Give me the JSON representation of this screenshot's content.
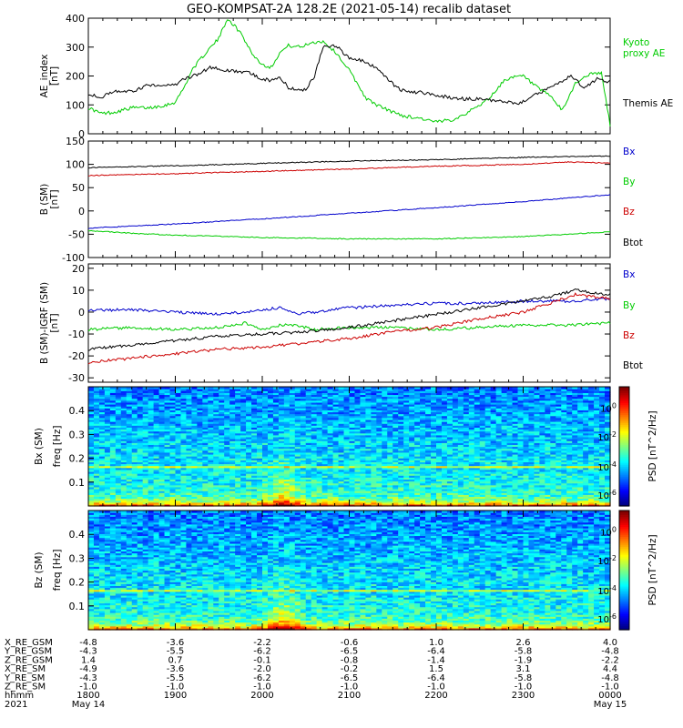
{
  "title": "GEO-KOMPSAT-2A 128.2E (2021-05-14) recalib dataset",
  "x_range_hours": [
    18.0,
    24.0
  ],
  "x_labels": {
    "rows": [
      {
        "name": "X_RE_GSM",
        "values": [
          "-4.8",
          "-3.6",
          "-2.2",
          "-0.6",
          "1.0",
          "2.6",
          "4.0"
        ]
      },
      {
        "name": "Y_RE_GSM",
        "values": [
          "-4.3",
          "-5.5",
          "-6.2",
          "-6.5",
          "-6.4",
          "-5.8",
          "-4.8"
        ]
      },
      {
        "name": "Z_RE_GSM",
        "values": [
          "1.4",
          "0.7",
          "-0.1",
          "-0.8",
          "-1.4",
          "-1.9",
          "-2.2"
        ]
      },
      {
        "name": "X_RE_SM",
        "values": [
          "-4.9",
          "-3.6",
          "-2.0",
          "-0.2",
          "1.5",
          "3.1",
          "4.4"
        ]
      },
      {
        "name": "Y_RE_SM",
        "values": [
          "-4.3",
          "-5.5",
          "-6.2",
          "-6.5",
          "-6.4",
          "-5.8",
          "-4.8"
        ]
      },
      {
        "name": "Z_RE_SM",
        "values": [
          "-1.0",
          "-1.0",
          "-1.0",
          "-1.0",
          "-1.0",
          "-1.0",
          "-1.0"
        ]
      },
      {
        "name": "hhmm",
        "values": [
          "1800",
          "1900",
          "2000",
          "2100",
          "2200",
          "2300",
          "0000"
        ]
      },
      {
        "name": "2021",
        "values": [
          "May 14",
          "",
          "",
          "",
          "",
          "",
          "May 15"
        ]
      }
    ]
  },
  "chart_data": [
    {
      "type": "line",
      "ylabel": "AE_index [nT]",
      "ylim": [
        0,
        400
      ],
      "yticks": [
        0,
        100,
        200,
        300,
        400
      ],
      "series": [
        {
          "name": "Kyoto proxy AE",
          "color": "#00cc00",
          "x": [
            18.0,
            18.15,
            18.3,
            18.5,
            18.7,
            18.9,
            19.0,
            19.1,
            19.2,
            19.35,
            19.5,
            19.6,
            19.75,
            19.9,
            20.0,
            20.1,
            20.2,
            20.3,
            20.45,
            20.55,
            20.7,
            20.85,
            21.0,
            21.1,
            21.2,
            21.35,
            21.5,
            21.65,
            21.8,
            22.0,
            22.2,
            22.4,
            22.6,
            22.8,
            23.0,
            23.1,
            23.2,
            23.3,
            23.45,
            23.6,
            23.75,
            23.9,
            24.0
          ],
          "y": [
            90,
            70,
            75,
            90,
            90,
            100,
            110,
            160,
            225,
            280,
            330,
            400,
            350,
            270,
            240,
            230,
            280,
            305,
            300,
            315,
            320,
            280,
            220,
            170,
            120,
            95,
            75,
            60,
            55,
            40,
            50,
            80,
            120,
            190,
            200,
            175,
            150,
            135,
            80,
            175,
            205,
            210,
            30
          ]
        },
        {
          "name": "Themis AE",
          "color": "#000000",
          "x": [
            18.0,
            18.15,
            18.3,
            18.5,
            18.7,
            18.9,
            19.0,
            19.1,
            19.25,
            19.4,
            19.55,
            19.7,
            19.85,
            20.0,
            20.1,
            20.2,
            20.3,
            20.4,
            20.5,
            20.6,
            20.7,
            20.85,
            21.0,
            21.15,
            21.3,
            21.45,
            21.6,
            21.75,
            21.9,
            22.05,
            22.2,
            22.35,
            22.5,
            22.65,
            22.8,
            22.95,
            23.1,
            23.25,
            23.4,
            23.55,
            23.7,
            23.85,
            24.0
          ],
          "y": [
            140,
            125,
            150,
            145,
            170,
            165,
            170,
            190,
            205,
            230,
            220,
            215,
            210,
            190,
            185,
            195,
            160,
            150,
            155,
            200,
            300,
            305,
            260,
            255,
            230,
            185,
            150,
            145,
            140,
            130,
            125,
            120,
            120,
            115,
            110,
            105,
            130,
            150,
            175,
            200,
            160,
            190,
            180
          ]
        }
      ]
    },
    {
      "type": "line",
      "ylabel": "B (SM) [nT]",
      "ylim": [
        -100,
        150
      ],
      "yticks": [
        -100,
        -50,
        0,
        50,
        100,
        150
      ],
      "series": [
        {
          "name": "Bx",
          "color": "#0000cc",
          "x": [
            18,
            19,
            20,
            21,
            22,
            23,
            24
          ],
          "y": [
            -37,
            -28,
            -17,
            -5,
            7,
            20,
            35
          ]
        },
        {
          "name": "By",
          "color": "#00cc00",
          "x": [
            18,
            18.5,
            19,
            20,
            21,
            22,
            23,
            24
          ],
          "y": [
            -42,
            -48,
            -52,
            -57,
            -60,
            -60,
            -55,
            -45
          ]
        },
        {
          "name": "Bz",
          "color": "#cc0000",
          "x": [
            18,
            19,
            20,
            21,
            22,
            23,
            23.5,
            24
          ],
          "y": [
            76,
            80,
            85,
            90,
            96,
            100,
            105,
            103
          ]
        },
        {
          "name": "Btot",
          "color": "#000000",
          "x": [
            18,
            19,
            20,
            21,
            22,
            23,
            24
          ],
          "y": [
            93,
            97,
            102,
            107,
            110,
            115,
            118
          ]
        }
      ]
    },
    {
      "type": "line",
      "ylabel": "B (SM)-IGRF (SM) [nT]",
      "ylim": [
        -32,
        22
      ],
      "yticks": [
        -30,
        -20,
        -10,
        0,
        10,
        20
      ],
      "series": [
        {
          "name": "Bx",
          "color": "#0000cc",
          "x": [
            18,
            18.5,
            19,
            19.5,
            19.8,
            20.0,
            20.2,
            20.4,
            20.6,
            21,
            21.5,
            22,
            22.5,
            23,
            23.5,
            24
          ],
          "y": [
            1,
            1,
            0,
            -1,
            0,
            1,
            2,
            -1,
            0,
            2,
            3,
            4,
            4,
            5,
            5,
            6
          ]
        },
        {
          "name": "By",
          "color": "#00cc00",
          "x": [
            18,
            18.5,
            19,
            19.5,
            19.8,
            20.0,
            20.2,
            20.4,
            20.6,
            21,
            21.5,
            22,
            22.5,
            23,
            23.5,
            24
          ],
          "y": [
            -8,
            -7,
            -8,
            -7,
            -5,
            -8,
            -6,
            -6,
            -8,
            -7,
            -7,
            -8,
            -7,
            -6,
            -6,
            -5
          ]
        },
        {
          "name": "Bz",
          "color": "#cc0000",
          "x": [
            18,
            18.5,
            19,
            19.5,
            20,
            20.5,
            21,
            21.5,
            22,
            22.5,
            23,
            23.3,
            23.6,
            24
          ],
          "y": [
            -23,
            -21,
            -19,
            -17,
            -16,
            -14,
            -12,
            -9,
            -7,
            -3,
            0,
            4,
            8,
            6
          ]
        },
        {
          "name": "Btot",
          "color": "#000000",
          "x": [
            18,
            18.5,
            19,
            19.5,
            20,
            20.5,
            21,
            21.5,
            22,
            22.5,
            23,
            23.3,
            23.6,
            24
          ],
          "y": [
            -17,
            -15,
            -13,
            -11,
            -10,
            -9,
            -7,
            -4,
            -1,
            2,
            5,
            7,
            10,
            8
          ]
        }
      ]
    },
    {
      "type": "heatmap",
      "ylabel": "Bx (SM) freq [Hz]",
      "ylim": [
        0,
        0.5
      ],
      "yticks": [
        0.1,
        0.2,
        0.3,
        0.4
      ],
      "colorbar_label": "PSD [nT^2/Hz]",
      "colorbar_ticks": [
        "10^0",
        "10^-2",
        "10^-4",
        "10^-6"
      ],
      "features": {
        "line_freq_hz": 0.167,
        "burst_center_hours": 20.25
      }
    },
    {
      "type": "heatmap",
      "ylabel": "Bz (SM) freq [Hz]",
      "ylim": [
        0,
        0.5
      ],
      "yticks": [
        0.1,
        0.2,
        0.3,
        0.4
      ],
      "colorbar_label": "PSD [nT^2/Hz]",
      "colorbar_ticks": [
        "10^0",
        "10^-2",
        "10^-4",
        "10^-6"
      ],
      "features": {
        "line_freq_hz": 0.167,
        "burst_center_hours": 20.25
      }
    }
  ],
  "legends": {
    "panel1": [
      {
        "text": "Kyoto",
        "color": "#00cc00"
      },
      {
        "text": "proxy AE",
        "color": "#00cc00"
      },
      {
        "text": "Themis AE",
        "color": "#000000"
      }
    ],
    "panel2": [
      {
        "text": "Bx",
        "color": "#0000cc"
      },
      {
        "text": "By",
        "color": "#00cc00"
      },
      {
        "text": "Bz",
        "color": "#cc0000"
      },
      {
        "text": "Btot",
        "color": "#000000"
      }
    ],
    "panel3": [
      {
        "text": "Bx",
        "color": "#0000cc"
      },
      {
        "text": "By",
        "color": "#00cc00"
      },
      {
        "text": "Bz",
        "color": "#cc0000"
      },
      {
        "text": "Btot",
        "color": "#000000"
      }
    ]
  }
}
